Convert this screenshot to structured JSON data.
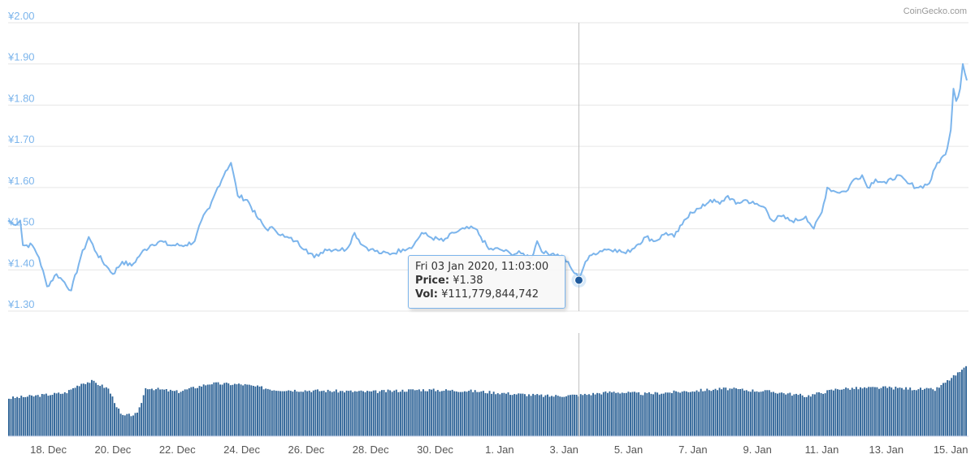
{
  "credit": "CoinGecko.com",
  "chart_data": [
    {
      "type": "line",
      "title": "",
      "ylabel": "",
      "ylim": [
        1.3,
        2.0
      ],
      "yticks": [
        "¥1.30",
        "¥1.40",
        "¥1.50",
        "¥1.60",
        "¥1.70",
        "¥1.80",
        "¥1.90",
        "¥2.00"
      ],
      "xticks": [
        "18. Dec",
        "20. Dec",
        "22. Dec",
        "24. Dec",
        "26. Dec",
        "28. Dec",
        "30. Dec",
        "1. Jan",
        "3. Jan",
        "5. Jan",
        "7. Jan",
        "9. Jan",
        "11. Jan",
        "13. Jan",
        "15. Jan"
      ],
      "xstart": "2019-12-16 18:00",
      "xend": "2020-01-15 12:00",
      "grid": true,
      "line_color": "#7cb5ec",
      "series": [
        {
          "points": [
            [
              "2019-12-16 18:00",
              1.52
            ],
            [
              "2019-12-16 22:00",
              1.51
            ],
            [
              "2019-12-17 03:00",
              1.52
            ],
            [
              "2019-12-17 05:00",
              1.46
            ],
            [
              "2019-12-17 12:00",
              1.46
            ],
            [
              "2019-12-17 17:00",
              1.43
            ],
            [
              "2019-12-17 23:00",
              1.36
            ],
            [
              "2019-12-18 06:00",
              1.39
            ],
            [
              "2019-12-18 12:00",
              1.37
            ],
            [
              "2019-12-18 17:00",
              1.35
            ],
            [
              "2019-12-19 00:00",
              1.43
            ],
            [
              "2019-12-19 06:00",
              1.48
            ],
            [
              "2019-12-19 12:00",
              1.44
            ],
            [
              "2019-12-19 19:00",
              1.41
            ],
            [
              "2019-12-20 00:00",
              1.39
            ],
            [
              "2019-12-20 07:00",
              1.42
            ],
            [
              "2019-12-20 14:00",
              1.41
            ],
            [
              "2019-12-20 21:00",
              1.44
            ],
            [
              "2019-12-21 04:00",
              1.46
            ],
            [
              "2019-12-21 11:00",
              1.47
            ],
            [
              "2019-12-21 18:00",
              1.46
            ],
            [
              "2019-12-22 06:00",
              1.46
            ],
            [
              "2019-12-22 13:00",
              1.47
            ],
            [
              "2019-12-22 18:00",
              1.52
            ],
            [
              "2019-12-23 00:00",
              1.55
            ],
            [
              "2019-12-23 06:00",
              1.6
            ],
            [
              "2019-12-23 12:00",
              1.64
            ],
            [
              "2019-12-23 16:00",
              1.66
            ],
            [
              "2019-12-23 21:00",
              1.58
            ],
            [
              "2019-12-24 04:00",
              1.57
            ],
            [
              "2019-12-24 11:00",
              1.53
            ],
            [
              "2019-12-24 18:00",
              1.5
            ],
            [
              "2019-12-25 00:00",
              1.5
            ],
            [
              "2019-12-25 08:00",
              1.48
            ],
            [
              "2019-12-25 16:00",
              1.47
            ],
            [
              "2019-12-26 00:00",
              1.45
            ],
            [
              "2019-12-26 06:00",
              1.43
            ],
            [
              "2019-12-26 14:00",
              1.45
            ],
            [
              "2019-12-26 22:00",
              1.45
            ],
            [
              "2019-12-27 06:00",
              1.45
            ],
            [
              "2019-12-27 12:00",
              1.49
            ],
            [
              "2019-12-27 18:00",
              1.46
            ],
            [
              "2019-12-28 00:00",
              1.45
            ],
            [
              "2019-12-28 08:00",
              1.44
            ],
            [
              "2019-12-28 16:00",
              1.44
            ],
            [
              "2019-12-29 00:00",
              1.45
            ],
            [
              "2019-12-29 08:00",
              1.46
            ],
            [
              "2019-12-29 14:00",
              1.49
            ],
            [
              "2019-12-29 20:00",
              1.48
            ],
            [
              "2019-12-30 06:00",
              1.47
            ],
            [
              "2019-12-30 14:00",
              1.49
            ],
            [
              "2019-12-30 22:00",
              1.5
            ],
            [
              "2019-12-31 06:00",
              1.5
            ],
            [
              "2019-12-31 10:00",
              1.48
            ],
            [
              "2019-12-31 16:00",
              1.45
            ],
            [
              "2020-01-01 00:00",
              1.45
            ],
            [
              "2020-01-01 08:00",
              1.44
            ],
            [
              "2020-01-01 16:00",
              1.44
            ],
            [
              "2020-01-02 00:00",
              1.43
            ],
            [
              "2020-01-02 04:00",
              1.47
            ],
            [
              "2020-01-02 09:00",
              1.44
            ],
            [
              "2020-01-02 16:00",
              1.44
            ],
            [
              "2020-01-03 00:00",
              1.43
            ],
            [
              "2020-01-03 06:00",
              1.4
            ],
            [
              "2020-01-03 11:00",
              1.38
            ],
            [
              "2020-01-03 16:00",
              1.42
            ],
            [
              "2020-01-03 22:00",
              1.44
            ],
            [
              "2020-01-04 06:00",
              1.45
            ],
            [
              "2020-01-04 14:00",
              1.45
            ],
            [
              "2020-01-04 22:00",
              1.44
            ],
            [
              "2020-01-05 06:00",
              1.46
            ],
            [
              "2020-01-05 13:00",
              1.48
            ],
            [
              "2020-01-05 20:00",
              1.47
            ],
            [
              "2020-01-06 04:00",
              1.49
            ],
            [
              "2020-01-06 10:00",
              1.48
            ],
            [
              "2020-01-06 16:00",
              1.51
            ],
            [
              "2020-01-06 22:00",
              1.54
            ],
            [
              "2020-01-07 06:00",
              1.55
            ],
            [
              "2020-01-07 13:00",
              1.57
            ],
            [
              "2020-01-07 20:00",
              1.56
            ],
            [
              "2020-01-08 02:00",
              1.58
            ],
            [
              "2020-01-08 08:00",
              1.56
            ],
            [
              "2020-01-08 15:00",
              1.57
            ],
            [
              "2020-01-08 22:00",
              1.56
            ],
            [
              "2020-01-09 06:00",
              1.55
            ],
            [
              "2020-01-09 11:00",
              1.52
            ],
            [
              "2020-01-09 18:00",
              1.53
            ],
            [
              "2020-01-10 00:00",
              1.52
            ],
            [
              "2020-01-10 06:00",
              1.52
            ],
            [
              "2020-01-10 12:00",
              1.53
            ],
            [
              "2020-01-10 18:00",
              1.5
            ],
            [
              "2020-01-11 00:00",
              1.54
            ],
            [
              "2020-01-11 04:00",
              1.6
            ],
            [
              "2020-01-11 10:00",
              1.59
            ],
            [
              "2020-01-11 18:00",
              1.59
            ],
            [
              "2020-01-12 00:00",
              1.62
            ],
            [
              "2020-01-12 06:00",
              1.63
            ],
            [
              "2020-01-12 10:00",
              1.6
            ],
            [
              "2020-01-12 16:00",
              1.62
            ],
            [
              "2020-01-13 00:00",
              1.61
            ],
            [
              "2020-01-13 08:00",
              1.63
            ],
            [
              "2020-01-13 16:00",
              1.61
            ],
            [
              "2020-01-14 00:00",
              1.6
            ],
            [
              "2020-01-14 08:00",
              1.61
            ],
            [
              "2020-01-14 14:00",
              1.66
            ],
            [
              "2020-01-14 20:00",
              1.68
            ],
            [
              "2020-01-15 00:00",
              1.74
            ],
            [
              "2020-01-15 02:00",
              1.84
            ],
            [
              "2020-01-15 04:00",
              1.81
            ],
            [
              "2020-01-15 07:00",
              1.84
            ],
            [
              "2020-01-15 09:00",
              1.9
            ],
            [
              "2020-01-15 12:00",
              1.86
            ]
          ]
        }
      ]
    },
    {
      "type": "bar",
      "title": "",
      "bar_color": "#2f6497",
      "note": "volume bars (values not labeled)",
      "profile": [
        [
          "2019-12-16 18:00",
          0.36
        ],
        [
          "2019-12-17 12:00",
          0.38
        ],
        [
          "2019-12-18 12:00",
          0.41
        ],
        [
          "2019-12-19 00:00",
          0.5
        ],
        [
          "2019-12-19 08:00",
          0.52
        ],
        [
          "2019-12-19 20:00",
          0.45
        ],
        [
          "2019-12-20 06:00",
          0.19
        ],
        [
          "2019-12-20 18:00",
          0.21
        ],
        [
          "2019-12-21 00:00",
          0.46
        ],
        [
          "2019-12-22 00:00",
          0.42
        ],
        [
          "2019-12-23 00:00",
          0.5
        ],
        [
          "2019-12-24 00:00",
          0.49
        ],
        [
          "2019-12-25 00:00",
          0.44
        ],
        [
          "2019-12-26 12:00",
          0.43
        ],
        [
          "2019-12-28 00:00",
          0.42
        ],
        [
          "2019-12-29 12:00",
          0.44
        ],
        [
          "2019-12-31 00:00",
          0.43
        ],
        [
          "2020-01-01 12:00",
          0.4
        ],
        [
          "2020-01-02 12:00",
          0.38
        ],
        [
          "2020-01-03 12:00",
          0.39
        ],
        [
          "2020-01-04 12:00",
          0.42
        ],
        [
          "2020-01-05 12:00",
          0.4
        ],
        [
          "2020-01-06 12:00",
          0.42
        ],
        [
          "2020-01-08 00:00",
          0.45
        ],
        [
          "2020-01-09 12:00",
          0.42
        ],
        [
          "2020-01-10 12:00",
          0.38
        ],
        [
          "2020-01-11 12:00",
          0.45
        ],
        [
          "2020-01-13 00:00",
          0.46
        ],
        [
          "2020-01-14 12:00",
          0.44
        ],
        [
          "2020-01-15 00:00",
          0.55
        ],
        [
          "2020-01-15 12:00",
          0.66
        ]
      ]
    }
  ],
  "tooltip": {
    "header": "Fri 03 Jan 2020, 11:03:00",
    "price_label": "Price:",
    "price_value": "¥1.38",
    "vol_label": "Vol:",
    "vol_value": "¥111,779,844,742"
  },
  "crosshair_time": "2020-01-03 11:03",
  "marker_color": "#1f5a9c"
}
